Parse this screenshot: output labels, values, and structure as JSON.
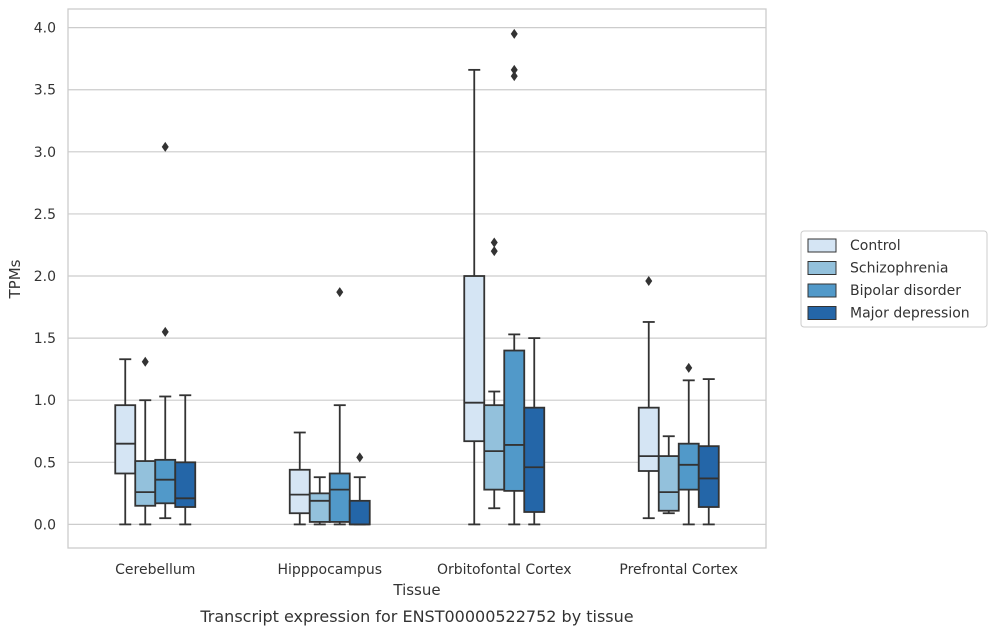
{
  "chart_data": {
    "type": "box",
    "caption": "Transcript expression for ENST00000522752 by tissue",
    "xlabel": "Tissue",
    "ylabel": "TPMs",
    "ylim": [
      -0.19,
      4.15
    ],
    "yticks": [
      0.0,
      0.5,
      1.0,
      1.5,
      2.0,
      2.5,
      3.0,
      3.5,
      4.0
    ],
    "ytick_labels": [
      "0.0",
      "0.5",
      "1.0",
      "1.5",
      "2.0",
      "2.5",
      "3.0",
      "3.5",
      "4.0"
    ],
    "grid": "horizontal",
    "legend_position": "right",
    "categories": [
      "Cerebellum",
      "Hipppocampus",
      "Orbitofontal Cortex",
      "Prefrontal Cortex"
    ],
    "series": [
      {
        "name": "Control",
        "color": "#d5e5f4",
        "boxes": [
          {
            "whislo": 0.0,
            "q1": 0.41,
            "med": 0.65,
            "q3": 0.96,
            "whishi": 1.33,
            "fliers": []
          },
          {
            "whislo": 0.0,
            "q1": 0.09,
            "med": 0.24,
            "q3": 0.44,
            "whishi": 0.74,
            "fliers": []
          },
          {
            "whislo": 0.0,
            "q1": 0.67,
            "med": 0.98,
            "q3": 2.0,
            "whishi": 3.66,
            "fliers": []
          },
          {
            "whislo": 0.05,
            "q1": 0.43,
            "med": 0.55,
            "q3": 0.94,
            "whishi": 1.63,
            "fliers": [
              1.96
            ]
          }
        ]
      },
      {
        "name": "Schizophrenia",
        "color": "#93c1dc",
        "boxes": [
          {
            "whislo": 0.0,
            "q1": 0.15,
            "med": 0.26,
            "q3": 0.51,
            "whishi": 1.0,
            "fliers": [
              1.31
            ]
          },
          {
            "whislo": 0.0,
            "q1": 0.02,
            "med": 0.19,
            "q3": 0.25,
            "whishi": 0.38,
            "fliers": []
          },
          {
            "whislo": 0.13,
            "q1": 0.28,
            "med": 0.59,
            "q3": 0.96,
            "whishi": 1.07,
            "fliers": [
              2.2,
              2.27
            ]
          },
          {
            "whislo": 0.09,
            "q1": 0.11,
            "med": 0.26,
            "q3": 0.55,
            "whishi": 0.71,
            "fliers": []
          }
        ]
      },
      {
        "name": "Bipolar disorder",
        "color": "#5199c9",
        "boxes": [
          {
            "whislo": 0.05,
            "q1": 0.17,
            "med": 0.36,
            "q3": 0.52,
            "whishi": 1.03,
            "fliers": [
              1.55,
              3.04
            ]
          },
          {
            "whislo": 0.0,
            "q1": 0.02,
            "med": 0.28,
            "q3": 0.41,
            "whishi": 0.96,
            "fliers": [
              1.87
            ]
          },
          {
            "whislo": 0.0,
            "q1": 0.27,
            "med": 0.64,
            "q3": 1.4,
            "whishi": 1.53,
            "fliers": [
              3.61,
              3.66,
              3.95
            ]
          },
          {
            "whislo": 0.0,
            "q1": 0.28,
            "med": 0.48,
            "q3": 0.65,
            "whishi": 1.16,
            "fliers": [
              1.26
            ]
          }
        ]
      },
      {
        "name": "Major depression",
        "color": "#2466a8",
        "boxes": [
          {
            "whislo": 0.0,
            "q1": 0.14,
            "med": 0.21,
            "q3": 0.5,
            "whishi": 1.04,
            "fliers": []
          },
          {
            "whislo": 0.0,
            "q1": 0.0,
            "med": 0.0,
            "q3": 0.19,
            "whishi": 0.38,
            "fliers": [
              0.54
            ]
          },
          {
            "whislo": 0.0,
            "q1": 0.1,
            "med": 0.46,
            "q3": 0.94,
            "whishi": 1.5,
            "fliers": []
          },
          {
            "whislo": 0.0,
            "q1": 0.14,
            "med": 0.37,
            "q3": 0.63,
            "whishi": 1.17,
            "fliers": []
          }
        ]
      }
    ]
  }
}
